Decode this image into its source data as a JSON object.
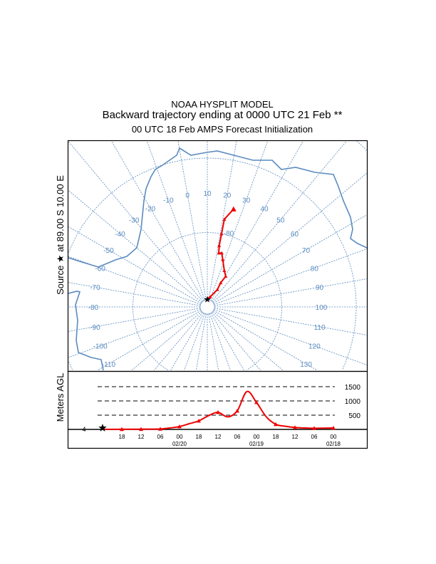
{
  "header": {
    "model": "NOAA HYSPLIT MODEL",
    "title": "Backward trajectory ending at 0000 UTC 21 Feb **",
    "subtitle": "00 UTC 18 Feb    AMPS  Forecast Initialization"
  },
  "colors": {
    "trajectory": "#ee0000",
    "map": "#5b8bbf",
    "axis": "#000000"
  },
  "chart_data": [
    {
      "type": "map",
      "projection": "polar-stereographic (south pole)",
      "ylabel": "Source ★ at  89.00 S  10.00 E",
      "source": {
        "lat": -89.0,
        "lon": 10.0
      },
      "latitude_rings": [
        -80,
        -70,
        -60
      ],
      "ring_label": "-80",
      "meridian_step_deg": 10,
      "longitude_labels": [
        "-110",
        "-100",
        "-90",
        "-80",
        "-70",
        "-60",
        "-50",
        "-40",
        "-30",
        "-20",
        "-10",
        "0",
        "10",
        "20",
        "30",
        "40",
        "50",
        "60",
        "70",
        "80",
        "90",
        "100",
        "110",
        "120",
        "130"
      ],
      "trajectory": {
        "points": [
          {
            "lat": -88.9,
            "lon": 10
          },
          {
            "lat": -88.6,
            "lon": 26
          },
          {
            "lat": -87.3,
            "lon": 40
          },
          {
            "lat": -86.3,
            "lon": 39
          },
          {
            "lat": -85.2,
            "lon": 41
          },
          {
            "lat": -84.6,
            "lon": 35
          },
          {
            "lat": -83.3,
            "lon": 28
          },
          {
            "lat": -82.5,
            "lon": 25
          },
          {
            "lat": -82.6,
            "lon": 22
          },
          {
            "lat": -81.6,
            "lon": 21
          },
          {
            "lat": -80.0,
            "lon": 21
          },
          {
            "lat": -78.0,
            "lon": 21
          },
          {
            "lat": -76.4,
            "lon": 25
          }
        ]
      }
    },
    {
      "type": "line",
      "ylabel": "Meters AGL",
      "start_height_label": "4",
      "x_hours_back": [
        0,
        3,
        6,
        9,
        12,
        15,
        18,
        21,
        24,
        27,
        30,
        33,
        36,
        39,
        42,
        45,
        48,
        51,
        54,
        57,
        60,
        63,
        66,
        69,
        72
      ],
      "y_meters": [
        4,
        4,
        5,
        5,
        8,
        10,
        15,
        50,
        100,
        200,
        300,
        480,
        600,
        440,
        650,
        1330,
        950,
        450,
        180,
        110,
        70,
        50,
        40,
        45,
        50
      ],
      "marker_interval_hours": 6,
      "ylim": [
        0,
        1600
      ],
      "reference_lines": [
        {
          "value": 500,
          "label": "500"
        },
        {
          "value": 1000,
          "label": "1000"
        },
        {
          "value": 1500,
          "label": "1500"
        }
      ],
      "x_tick_labels": [
        {
          "hours_back": 6,
          "label": "18"
        },
        {
          "hours_back": 12,
          "label": "12"
        },
        {
          "hours_back": 18,
          "label": "06"
        },
        {
          "hours_back": 24,
          "label": "00",
          "date": "02/20"
        },
        {
          "hours_back": 30,
          "label": "18"
        },
        {
          "hours_back": 36,
          "label": "12"
        },
        {
          "hours_back": 42,
          "label": "06"
        },
        {
          "hours_back": 48,
          "label": "00",
          "date": "02/19"
        },
        {
          "hours_back": 54,
          "label": "18"
        },
        {
          "hours_back": 60,
          "label": "12"
        },
        {
          "hours_back": 66,
          "label": "06"
        },
        {
          "hours_back": 72,
          "label": "00",
          "date": "02/18"
        }
      ]
    }
  ]
}
